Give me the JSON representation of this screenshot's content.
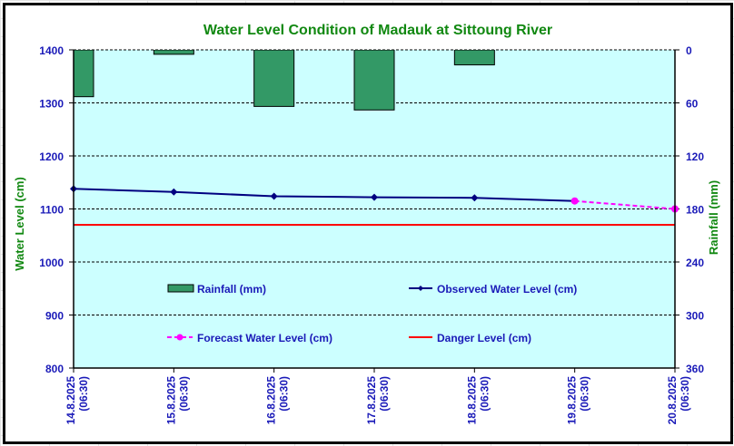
{
  "chart_data": {
    "type": "line",
    "title": "Water Level Condition of Madauk at Sittoung River",
    "xlabel": "",
    "ylabel": "Water Level (cm)",
    "y2label": "Rainfall (mm)",
    "categories": [
      "14.8.2025 (06:30)",
      "15.8.2025 (06:30)",
      "16.8.2025 (06:30)",
      "17.8.2025 (06:30)",
      "18.8.2025 (06:30)",
      "19.8.2025 (06:30)",
      "20.8.2025 (06:30)"
    ],
    "category_lines": [
      [
        "14.8.2025",
        "(06:30)"
      ],
      [
        "15.8.2025",
        "(06:30)"
      ],
      [
        "16.8.2025",
        "(06:30)"
      ],
      [
        "17.8.2025",
        "(06:30)"
      ],
      [
        "18.8.2025",
        "(06:30)"
      ],
      [
        "19.8.2025",
        "(06:30)"
      ],
      [
        "20.8.2025",
        "(06:30)"
      ]
    ],
    "ylim": [
      800,
      1400
    ],
    "yticks": [
      1400,
      1300,
      1200,
      1100,
      1000,
      900,
      800
    ],
    "y2lim": [
      0,
      360
    ],
    "y2ticks": [
      0,
      60,
      120,
      180,
      240,
      300,
      360
    ],
    "y2_inverted": true,
    "grid": true,
    "series": [
      {
        "name": "Rainfall (mm)",
        "type": "bar",
        "axis": "right",
        "color": "#339966",
        "values": [
          53,
          5,
          64,
          68,
          17,
          null,
          null
        ]
      },
      {
        "name": "Observed Water Level (cm)",
        "type": "line",
        "axis": "left",
        "color": "#000080",
        "marker": "diamond",
        "values": [
          1138,
          1132,
          1124,
          1122,
          1121,
          1115,
          null
        ]
      },
      {
        "name": "Forecast Water Level (cm)",
        "type": "line",
        "axis": "left",
        "color": "#ff00ff",
        "marker": "circle",
        "dashed": true,
        "values": [
          null,
          null,
          null,
          null,
          null,
          1115,
          1100
        ]
      },
      {
        "name": "Danger Level (cm)",
        "type": "line",
        "axis": "left",
        "color": "#ff0000",
        "values": [
          1070,
          1070,
          1070,
          1070,
          1070,
          1070,
          1070
        ]
      }
    ],
    "legend": {
      "position": "inside-center",
      "items": [
        "Rainfall (mm)",
        "Observed Water Level (cm)",
        "Forecast Water Level (cm)",
        "Danger Level (cm)"
      ]
    },
    "colors": {
      "plot_background": "#ccffff",
      "title": "#118811",
      "tick_labels": "#1a1ab8"
    }
  }
}
